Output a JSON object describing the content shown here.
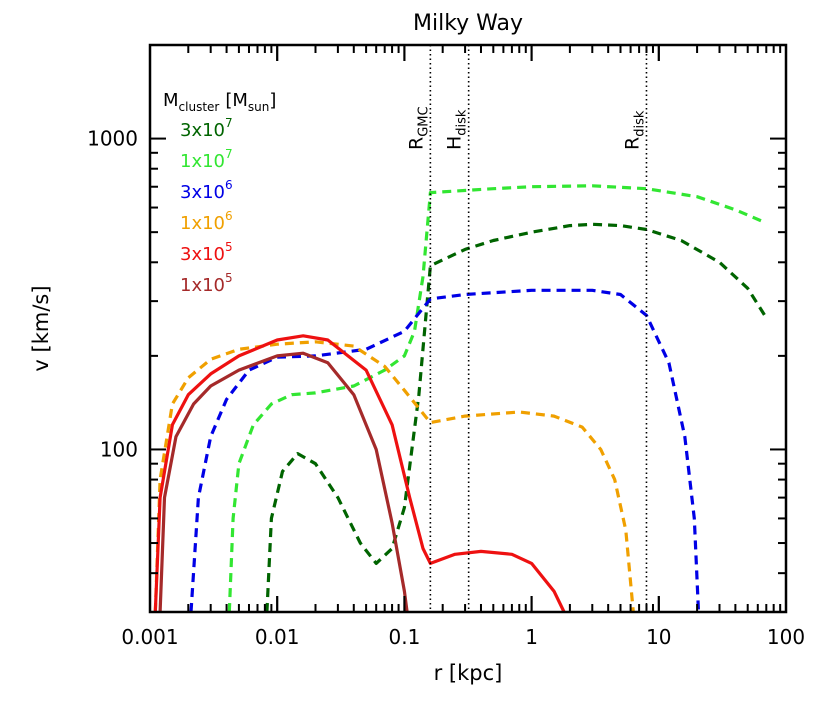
{
  "chart_data": {
    "type": "line",
    "title": "Milky Way",
    "xlabel": "r [kpc]",
    "ylabel": "v [km/s]",
    "xscale": "log",
    "yscale": "log",
    "xlim": [
      0.001,
      100
    ],
    "ylim": [
      30,
      2000
    ],
    "x_ticks": [
      {
        "value": 0.001,
        "label": "0.001"
      },
      {
        "value": 0.01,
        "label": "0.01"
      },
      {
        "value": 0.1,
        "label": "0.1"
      },
      {
        "value": 1,
        "label": "1"
      },
      {
        "value": 10,
        "label": "10"
      },
      {
        "value": 100,
        "label": "100"
      }
    ],
    "y_ticks": [
      {
        "value": 100,
        "label": "100"
      },
      {
        "value": 1000,
        "label": "1000"
      }
    ],
    "legend": {
      "title_main": "M",
      "title_sub": "cluster",
      "title_unit_open": "[M",
      "title_unit_sub": "sun",
      "title_unit_close": "]",
      "placement": "top-left",
      "entries": [
        {
          "label_base": "3x10",
          "label_exp": "7",
          "color": "#006400"
        },
        {
          "label_base": "1x10",
          "label_exp": "7",
          "color": "#32e632"
        },
        {
          "label_base": "3x10",
          "label_exp": "6",
          "color": "#0000e6"
        },
        {
          "label_base": "1x10",
          "label_exp": "6",
          "color": "#f0a000"
        },
        {
          "label_base": "3x10",
          "label_exp": "5",
          "color": "#ee1111"
        },
        {
          "label_base": "1x10",
          "label_exp": "5",
          "color": "#a52a2a"
        }
      ]
    },
    "vlines": [
      {
        "x": 0.16,
        "label_main": "R",
        "label_sub": "GMC"
      },
      {
        "x": 0.32,
        "label_main": "H",
        "label_sub": "disk"
      },
      {
        "x": 8.0,
        "label_main": "R",
        "label_sub": "disk"
      }
    ],
    "series": [
      {
        "legend_index": 0,
        "color": "#006400",
        "dash": true,
        "points": [
          [
            0.0083,
            30
          ],
          [
            0.009,
            60
          ],
          [
            0.011,
            85
          ],
          [
            0.0145,
            97
          ],
          [
            0.02,
            90
          ],
          [
            0.03,
            70
          ],
          [
            0.045,
            50
          ],
          [
            0.06,
            43
          ],
          [
            0.08,
            48
          ],
          [
            0.1,
            65
          ],
          [
            0.13,
            150
          ],
          [
            0.16,
            390
          ],
          [
            0.3,
            440
          ],
          [
            0.5,
            470
          ],
          [
            1,
            500
          ],
          [
            2,
            525
          ],
          [
            3,
            530
          ],
          [
            5,
            525
          ],
          [
            8,
            510
          ],
          [
            15,
            470
          ],
          [
            30,
            400
          ],
          [
            50,
            330
          ],
          [
            70,
            265
          ]
        ]
      },
      {
        "legend_index": 1,
        "color": "#32e632",
        "dash": true,
        "points": [
          [
            0.0042,
            30
          ],
          [
            0.0045,
            60
          ],
          [
            0.005,
            90
          ],
          [
            0.0065,
            120
          ],
          [
            0.009,
            140
          ],
          [
            0.013,
            150
          ],
          [
            0.02,
            152
          ],
          [
            0.04,
            160
          ],
          [
            0.07,
            180
          ],
          [
            0.1,
            200
          ],
          [
            0.12,
            240
          ],
          [
            0.14,
            360
          ],
          [
            0.16,
            670
          ],
          [
            0.5,
            690
          ],
          [
            1,
            700
          ],
          [
            3,
            705
          ],
          [
            8,
            690
          ],
          [
            20,
            650
          ],
          [
            40,
            590
          ],
          [
            70,
            535
          ]
        ]
      },
      {
        "legend_index": 2,
        "color": "#0000e6",
        "dash": true,
        "points": [
          [
            0.0021,
            30
          ],
          [
            0.0024,
            70
          ],
          [
            0.003,
            110
          ],
          [
            0.004,
            145
          ],
          [
            0.006,
            180
          ],
          [
            0.01,
            198
          ],
          [
            0.02,
            200
          ],
          [
            0.05,
            210
          ],
          [
            0.1,
            240
          ],
          [
            0.16,
            305
          ],
          [
            0.3,
            315
          ],
          [
            1,
            325
          ],
          [
            3,
            325
          ],
          [
            5,
            315
          ],
          [
            8,
            270
          ],
          [
            12,
            190
          ],
          [
            16,
            110
          ],
          [
            19,
            60
          ],
          [
            20.5,
            30
          ]
        ]
      },
      {
        "legend_index": 3,
        "color": "#f0a000",
        "dash": true,
        "points": [
          [
            0.0011,
            30
          ],
          [
            0.0012,
            80
          ],
          [
            0.0015,
            140
          ],
          [
            0.002,
            170
          ],
          [
            0.003,
            195
          ],
          [
            0.005,
            210
          ],
          [
            0.01,
            218
          ],
          [
            0.02,
            222
          ],
          [
            0.04,
            215
          ],
          [
            0.07,
            185
          ],
          [
            0.1,
            155
          ],
          [
            0.16,
            122
          ],
          [
            0.3,
            128
          ],
          [
            0.8,
            132
          ],
          [
            1.5,
            128
          ],
          [
            2.5,
            118
          ],
          [
            3.5,
            100
          ],
          [
            4.5,
            80
          ],
          [
            5.5,
            55
          ],
          [
            6.3,
            30
          ]
        ]
      },
      {
        "legend_index": 4,
        "color": "#ee1111",
        "dash": false,
        "points": [
          [
            0.0011,
            30
          ],
          [
            0.0012,
            70
          ],
          [
            0.0015,
            120
          ],
          [
            0.002,
            150
          ],
          [
            0.003,
            175
          ],
          [
            0.005,
            200
          ],
          [
            0.01,
            225
          ],
          [
            0.016,
            232
          ],
          [
            0.025,
            225
          ],
          [
            0.05,
            180
          ],
          [
            0.08,
            120
          ],
          [
            0.11,
            70
          ],
          [
            0.14,
            48
          ],
          [
            0.16,
            43
          ],
          [
            0.25,
            46
          ],
          [
            0.4,
            47
          ],
          [
            0.7,
            46
          ],
          [
            1,
            43
          ],
          [
            1.5,
            35
          ],
          [
            1.8,
            30
          ]
        ]
      },
      {
        "legend_index": 5,
        "color": "#a52a2a",
        "dash": false,
        "points": [
          [
            0.0012,
            30
          ],
          [
            0.0013,
            70
          ],
          [
            0.0016,
            110
          ],
          [
            0.0022,
            140
          ],
          [
            0.003,
            160
          ],
          [
            0.005,
            180
          ],
          [
            0.01,
            200
          ],
          [
            0.016,
            204
          ],
          [
            0.025,
            190
          ],
          [
            0.04,
            150
          ],
          [
            0.06,
            100
          ],
          [
            0.08,
            58
          ],
          [
            0.1,
            35
          ],
          [
            0.105,
            30
          ]
        ]
      }
    ]
  }
}
